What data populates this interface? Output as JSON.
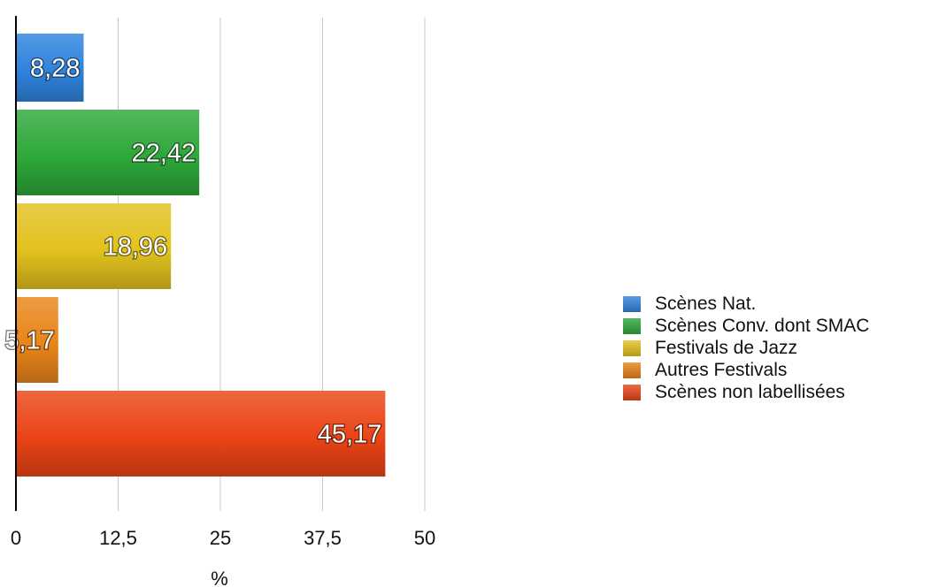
{
  "chart_data": {
    "type": "bar",
    "orientation": "horizontal",
    "categories": [
      "Scènes Nat.",
      "Scènes Conv. dont SMAC",
      "Festivals de Jazz",
      "Autres Festivals",
      "Scènes non labellisées"
    ],
    "values": [
      8.28,
      22.42,
      18.96,
      5.17,
      45.17
    ],
    "value_labels": [
      "8,28",
      "22,42",
      "18,96",
      "5,17",
      "45,17"
    ],
    "colors": [
      "#2f83dd",
      "#2ea83a",
      "#e2c21e",
      "#e98519",
      "#ea4416"
    ],
    "title": "",
    "xlabel": "%",
    "ylabel": "",
    "xlim": [
      0,
      50
    ],
    "x_ticks": [
      0,
      12.5,
      25,
      37.5,
      50
    ],
    "x_tick_labels": [
      "0",
      "12,5",
      "25",
      "37,5",
      "50"
    ],
    "grid": "vertical",
    "legend_position": "right"
  }
}
